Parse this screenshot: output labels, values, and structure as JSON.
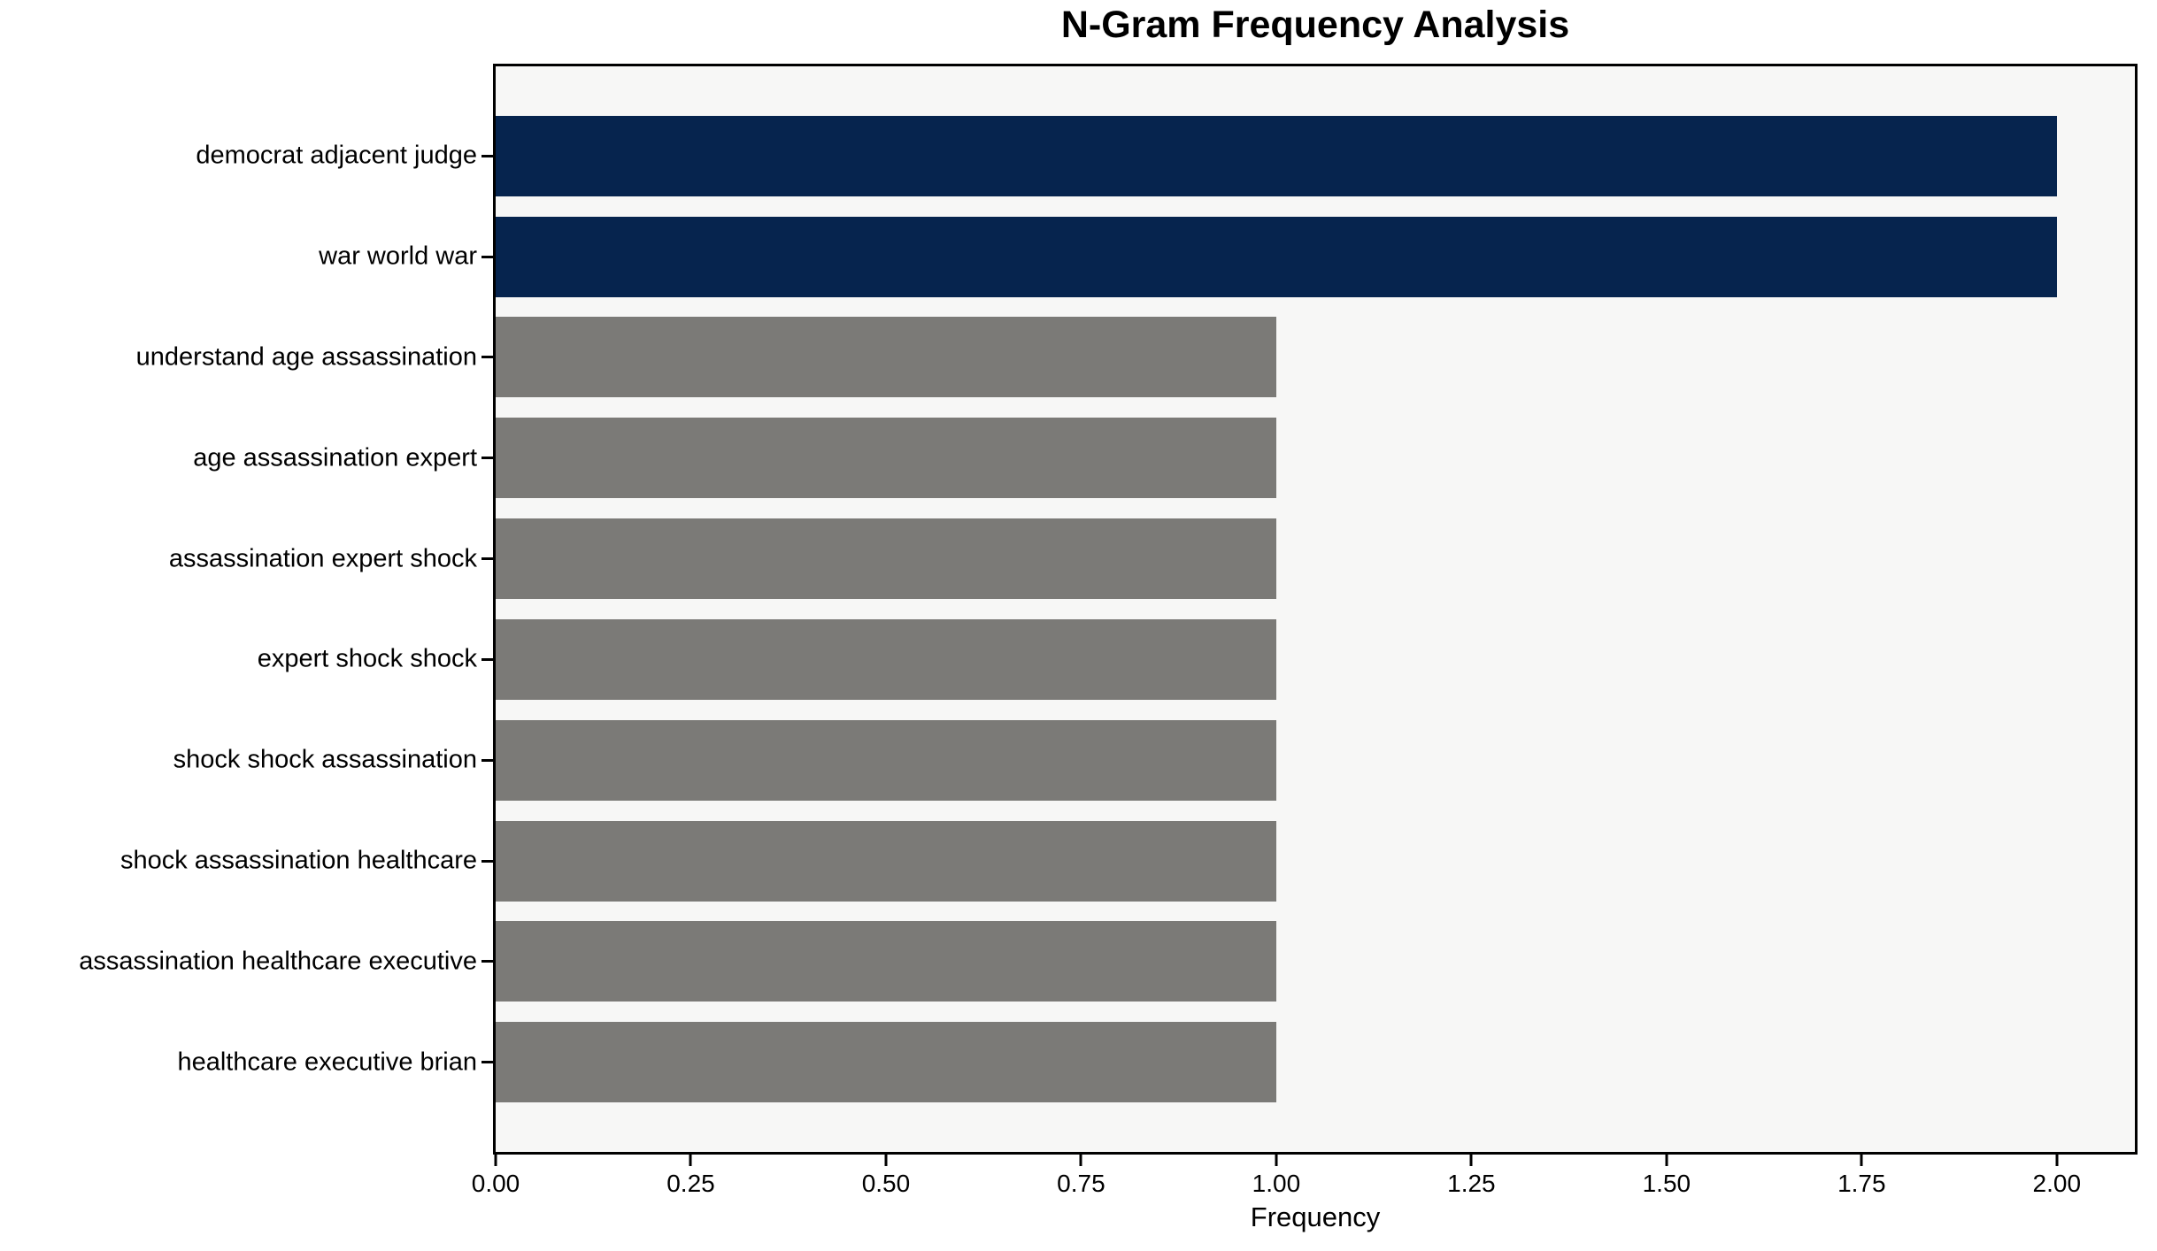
{
  "chart_data": {
    "type": "bar",
    "orientation": "horizontal",
    "title": "N-Gram Frequency Analysis",
    "xlabel": "Frequency",
    "ylabel": "",
    "categories": [
      "democrat adjacent judge",
      "war world war",
      "understand age assassination",
      "age assassination expert",
      "assassination expert shock",
      "expert shock shock",
      "shock shock assassination",
      "shock assassination healthcare",
      "assassination healthcare executive",
      "healthcare executive brian"
    ],
    "values": [
      2,
      2,
      1,
      1,
      1,
      1,
      1,
      1,
      1,
      1
    ],
    "bar_colors": [
      "#06244e",
      "#06244e",
      "#7b7a77",
      "#7b7a77",
      "#7b7a77",
      "#7b7a77",
      "#7b7a77",
      "#7b7a77",
      "#7b7a77",
      "#7b7a77"
    ],
    "xlim": [
      0,
      2.1
    ],
    "xticks": [
      {
        "value": 0.0,
        "label": "0.00"
      },
      {
        "value": 0.25,
        "label": "0.25"
      },
      {
        "value": 0.5,
        "label": "0.50"
      },
      {
        "value": 0.75,
        "label": "0.75"
      },
      {
        "value": 1.0,
        "label": "1.00"
      },
      {
        "value": 1.25,
        "label": "1.25"
      },
      {
        "value": 1.5,
        "label": "1.50"
      },
      {
        "value": 1.75,
        "label": "1.75"
      },
      {
        "value": 2.0,
        "label": "2.00"
      }
    ],
    "bar_height_fraction": 0.8,
    "grid": false,
    "legend": null,
    "plot_background": "#f7f7f6",
    "axis_color": "#000000",
    "title_color": "#000000"
  }
}
